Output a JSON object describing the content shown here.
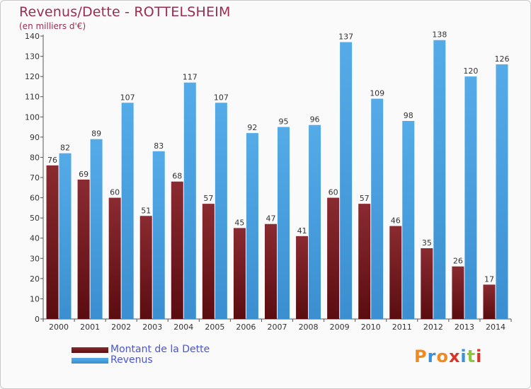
{
  "colors": {
    "dette": "#7a1f24",
    "revenus": "#4aa3e3",
    "title": "#9b2c4e",
    "legend_text": "#4a55d6"
  },
  "logo": {
    "letters": [
      "P",
      "r",
      "o",
      "x",
      "i",
      "t",
      "i"
    ],
    "colors": [
      "#f08a1c",
      "#3d8fd6",
      "#f08a1c",
      "#d8352a",
      "#3d8fd6",
      "#8dc63f",
      "#d8352a"
    ]
  },
  "chart_data": {
    "type": "bar",
    "title": "Revenus/Dette - ROTTELSHEIM",
    "subtitle": "(en milliers d'€)",
    "xlabel": "",
    "ylabel": "",
    "categories": [
      "2000",
      "2001",
      "2002",
      "2003",
      "2004",
      "2005",
      "2006",
      "2007",
      "2008",
      "2009",
      "2010",
      "2011",
      "2012",
      "2013",
      "2014"
    ],
    "series": [
      {
        "name": "Montant de la Dette",
        "color": "#7a1f24",
        "values": [
          76,
          69,
          60,
          51,
          68,
          57,
          45,
          47,
          41,
          60,
          57,
          46,
          35,
          26,
          17
        ]
      },
      {
        "name": "Revenus",
        "color": "#4aa3e3",
        "values": [
          82,
          89,
          107,
          83,
          117,
          107,
          92,
          95,
          96,
          137,
          109,
          98,
          138,
          120,
          126
        ]
      }
    ],
    "ylim": [
      0,
      140
    ],
    "yticks": [
      0,
      10,
      20,
      30,
      40,
      50,
      60,
      70,
      80,
      90,
      100,
      110,
      120,
      130,
      140
    ],
    "grid": false,
    "legend": "bottom-left"
  }
}
